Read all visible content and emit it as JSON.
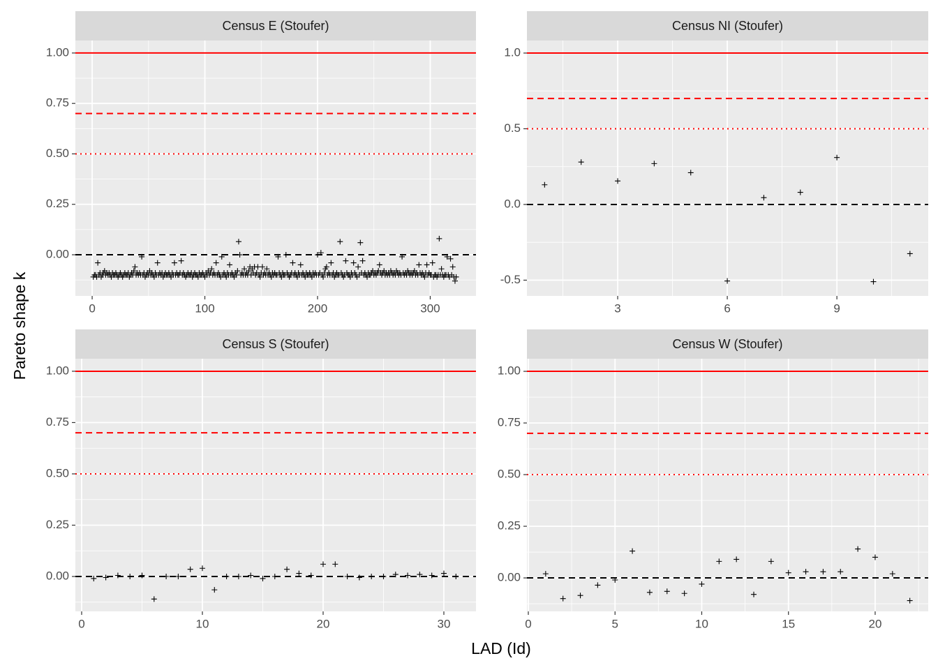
{
  "xlabel": "LAD (Id)",
  "ylabel": "Pareto shape k",
  "chart_data": [
    {
      "type": "scatter",
      "title": "Census E (Stoufer)",
      "grid": true,
      "marker_color": "#000000",
      "xlim": [
        -14.9,
        340.6
      ],
      "ylim": [
        -0.204,
        1.062
      ],
      "xticks": [
        0,
        100,
        200,
        300
      ],
      "yticks": [
        {
          "value": 0,
          "label": "0.00"
        },
        0.25,
        {
          "value": 0.5,
          "label": "0.50"
        },
        0.75,
        {
          "value": 1,
          "label": "1.00"
        }
      ],
      "hlines": [
        {
          "value": 1,
          "color": "#ff0000",
          "linetype": "solid"
        },
        {
          "value": 0.7,
          "color": "#ff0000",
          "linetype": "dashed"
        },
        {
          "value": 0.5,
          "color": "#ff0000",
          "linetype": "dotted"
        },
        {
          "value": 0,
          "color": "#000000",
          "linetype": "dashed"
        }
      ],
      "x": [
        1,
        2,
        3,
        4,
        5,
        6,
        7,
        8,
        9,
        10,
        11,
        12,
        13,
        14,
        15,
        16,
        17,
        18,
        19,
        20,
        21,
        22,
        23,
        24,
        25,
        26,
        27,
        28,
        29,
        30,
        31,
        32,
        33,
        34,
        35,
        36,
        37,
        38,
        39,
        40,
        41,
        42,
        43,
        44,
        45,
        46,
        47,
        48,
        49,
        50,
        51,
        52,
        53,
        54,
        55,
        56,
        57,
        58,
        59,
        60,
        61,
        62,
        63,
        64,
        65,
        66,
        67,
        68,
        69,
        70,
        71,
        72,
        73,
        74,
        75,
        76,
        77,
        78,
        79,
        80,
        81,
        82,
        83,
        84,
        85,
        86,
        87,
        88,
        89,
        90,
        91,
        92,
        93,
        94,
        95,
        96,
        97,
        98,
        99,
        100,
        101,
        102,
        103,
        104,
        105,
        106,
        107,
        108,
        109,
        110,
        111,
        112,
        113,
        114,
        115,
        116,
        117,
        118,
        119,
        120,
        121,
        122,
        123,
        124,
        125,
        126,
        127,
        128,
        129,
        130,
        131,
        132,
        133,
        134,
        135,
        136,
        137,
        138,
        139,
        140,
        141,
        142,
        143,
        144,
        145,
        146,
        147,
        148,
        149,
        150,
        151,
        152,
        153,
        154,
        155,
        156,
        157,
        158,
        159,
        160,
        161,
        162,
        163,
        164,
        165,
        166,
        167,
        168,
        169,
        170,
        171,
        172,
        173,
        174,
        175,
        176,
        177,
        178,
        179,
        180,
        181,
        182,
        183,
        184,
        185,
        186,
        187,
        188,
        189,
        190,
        191,
        192,
        193,
        194,
        195,
        196,
        197,
        198,
        199,
        200,
        201,
        202,
        203,
        204,
        205,
        206,
        207,
        208,
        209,
        210,
        211,
        212,
        213,
        214,
        215,
        216,
        217,
        218,
        219,
        220,
        221,
        222,
        223,
        224,
        225,
        226,
        227,
        228,
        229,
        230,
        231,
        232,
        233,
        234,
        235,
        236,
        237,
        238,
        239,
        240,
        241,
        242,
        243,
        244,
        245,
        246,
        247,
        248,
        249,
        250,
        251,
        252,
        253,
        254,
        255,
        256,
        257,
        258,
        259,
        260,
        261,
        262,
        263,
        264,
        265,
        266,
        267,
        268,
        269,
        270,
        271,
        272,
        273,
        274,
        275,
        276,
        277,
        278,
        279,
        280,
        281,
        282,
        283,
        284,
        285,
        286,
        287,
        288,
        289,
        290,
        291,
        292,
        293,
        294,
        295,
        296,
        297,
        298,
        299,
        300,
        301,
        302,
        303,
        304,
        305,
        306,
        307,
        308,
        309,
        310,
        311,
        312,
        313,
        314,
        315,
        316,
        317,
        318,
        319,
        320,
        321,
        322,
        323
      ],
      "values": [
        -0.11,
        -0.1,
        -0.1,
        -0.11,
        -0.04,
        -0.1,
        -0.09,
        -0.11,
        -0.1,
        -0.09,
        -0.08,
        -0.1,
        -0.09,
        -0.1,
        -0.09,
        -0.1,
        -0.11,
        -0.09,
        -0.1,
        -0.1,
        -0.09,
        -0.1,
        -0.11,
        -0.1,
        -0.09,
        -0.1,
        -0.11,
        -0.1,
        -0.09,
        -0.1,
        -0.1,
        -0.09,
        -0.11,
        -0.1,
        -0.09,
        -0.1,
        -0.08,
        -0.06,
        -0.1,
        -0.09,
        -0.1,
        -0.09,
        -0.1,
        -0.01,
        -0.1,
        -0.09,
        -0.11,
        -0.1,
        -0.09,
        -0.1,
        -0.08,
        -0.1,
        -0.09,
        -0.1,
        -0.11,
        -0.09,
        -0.1,
        -0.04,
        -0.1,
        -0.09,
        -0.1,
        -0.09,
        -0.11,
        -0.1,
        -0.09,
        -0.1,
        -0.1,
        -0.09,
        -0.1,
        -0.11,
        -0.09,
        -0.1,
        -0.04,
        -0.1,
        -0.09,
        -0.1,
        -0.1,
        -0.09,
        -0.03,
        -0.1,
        -0.09,
        -0.1,
        -0.11,
        -0.1,
        -0.09,
        -0.1,
        -0.1,
        -0.09,
        -0.11,
        -0.1,
        -0.09,
        -0.1,
        -0.1,
        -0.11,
        -0.09,
        -0.1,
        -0.1,
        -0.09,
        -0.1,
        -0.11,
        -0.09,
        -0.1,
        -0.08,
        -0.1,
        -0.09,
        -0.07,
        -0.1,
        -0.09,
        -0.1,
        -0.04,
        -0.1,
        -0.09,
        -0.1,
        -0.11,
        -0.01,
        -0.1,
        -0.09,
        -0.1,
        -0.11,
        -0.09,
        -0.1,
        -0.05,
        -0.1,
        -0.09,
        -0.1,
        -0.11,
        -0.09,
        -0.1,
        -0.08,
        0.065,
        0.0,
        -0.1,
        -0.09,
        -0.1,
        -0.07,
        -0.1,
        -0.09,
        -0.1,
        -0.08,
        -0.06,
        -0.1,
        -0.07,
        -0.09,
        -0.06,
        -0.1,
        -0.09,
        -0.06,
        -0.1,
        -0.11,
        -0.09,
        -0.06,
        -0.1,
        -0.09,
        -0.1,
        -0.07,
        -0.1,
        -0.09,
        -0.1,
        -0.11,
        -0.09,
        -0.1,
        -0.09,
        -0.1,
        -0.1,
        -0.01,
        -0.09,
        -0.1,
        -0.11,
        -0.09,
        -0.1,
        -0.1,
        0.0,
        -0.09,
        -0.1,
        -0.11,
        -0.1,
        -0.09,
        -0.04,
        -0.1,
        -0.09,
        -0.1,
        -0.11,
        -0.09,
        -0.1,
        -0.05,
        -0.1,
        -0.09,
        -0.1,
        -0.11,
        -0.09,
        -0.1,
        -0.1,
        -0.09,
        -0.1,
        -0.11,
        -0.09,
        -0.1,
        -0.09,
        -0.1,
        0.0,
        -0.1,
        -0.09,
        0.01,
        -0.1,
        -0.11,
        -0.09,
        -0.07,
        -0.06,
        -0.1,
        -0.09,
        -0.1,
        -0.04,
        -0.1,
        -0.09,
        -0.11,
        -0.1,
        -0.09,
        -0.1,
        -0.1,
        0.065,
        -0.09,
        -0.1,
        -0.11,
        -0.1,
        -0.03,
        -0.09,
        -0.1,
        -0.1,
        -0.11,
        -0.09,
        -0.1,
        -0.04,
        -0.09,
        -0.1,
        -0.11,
        -0.06,
        -0.1,
        0.06,
        -0.09,
        -0.03,
        -0.1,
        -0.09,
        -0.1,
        -0.11,
        -0.09,
        -0.1,
        -0.1,
        -0.09,
        -0.08,
        -0.1,
        -0.09,
        -0.1,
        -0.09,
        -0.08,
        -0.05,
        -0.09,
        -0.1,
        -0.09,
        -0.08,
        -0.1,
        -0.09,
        -0.1,
        -0.09,
        -0.1,
        -0.08,
        -0.09,
        -0.1,
        -0.09,
        -0.1,
        -0.08,
        -0.09,
        -0.1,
        -0.09,
        -0.1,
        -0.01,
        -0.09,
        -0.1,
        -0.09,
        -0.1,
        -0.08,
        -0.09,
        -0.1,
        -0.09,
        -0.1,
        -0.09,
        -0.08,
        -0.1,
        -0.09,
        -0.1,
        -0.05,
        -0.09,
        -0.1,
        -0.09,
        -0.1,
        -0.11,
        -0.09,
        -0.05,
        -0.1,
        -0.09,
        -0.1,
        -0.1,
        -0.04,
        -0.11,
        -0.1,
        -0.1,
        -0.11,
        -0.1,
        0.08,
        -0.1,
        -0.07,
        -0.1,
        -0.11,
        -0.1,
        -0.1,
        -0.01,
        -0.1,
        -0.11,
        -0.02,
        -0.1,
        -0.06,
        -0.11,
        -0.13,
        -0.11
      ]
    },
    {
      "type": "scatter",
      "title": "Census NI (Stoufer)",
      "grid": true,
      "marker_color": "#000000",
      "xlim": [
        0.516,
        11.5
      ],
      "ylim": [
        -0.604,
        1.083
      ],
      "xticks": [
        3,
        6,
        9
      ],
      "yticks": [
        -0.5,
        {
          "value": 0,
          "label": "0.0"
        },
        0.5,
        {
          "value": 1,
          "label": "1.0"
        }
      ],
      "hlines": [
        {
          "value": 1,
          "color": "#ff0000",
          "linetype": "solid"
        },
        {
          "value": 0.7,
          "color": "#ff0000",
          "linetype": "dashed"
        },
        {
          "value": 0.5,
          "color": "#ff0000",
          "linetype": "dotted"
        },
        {
          "value": 0,
          "color": "#000000",
          "linetype": "dashed"
        }
      ],
      "x": [
        1,
        2,
        3,
        4,
        5,
        6,
        7,
        8,
        9,
        10,
        11
      ],
      "values": [
        0.13,
        0.28,
        0.155,
        0.27,
        0.21,
        -0.505,
        0.045,
        0.08,
        0.31,
        -0.51,
        -0.325
      ]
    },
    {
      "type": "scatter",
      "title": "Census S (Stoufer)",
      "grid": true,
      "marker_color": "#000000",
      "xlim": [
        -0.52,
        32.66
      ],
      "ylim": [
        -0.17,
        1.061
      ],
      "xticks": [
        0,
        10,
        20,
        30
      ],
      "yticks": [
        {
          "value": 0,
          "label": "0.00"
        },
        0.25,
        {
          "value": 0.5,
          "label": "0.50"
        },
        0.75,
        {
          "value": 1,
          "label": "1.00"
        }
      ],
      "hlines": [
        {
          "value": 1,
          "color": "#ff0000",
          "linetype": "solid"
        },
        {
          "value": 0.7,
          "color": "#ff0000",
          "linetype": "dashed"
        },
        {
          "value": 0.5,
          "color": "#ff0000",
          "linetype": "dotted"
        },
        {
          "value": 0,
          "color": "#000000",
          "linetype": "dashed"
        }
      ],
      "x": [
        1,
        2,
        3,
        4,
        5,
        6,
        7,
        8,
        9,
        10,
        11,
        12,
        13,
        14,
        15,
        16,
        17,
        18,
        19,
        20,
        21,
        22,
        23,
        24,
        25,
        26,
        27,
        28,
        29,
        30,
        31
      ],
      "values": [
        -0.01,
        -0.005,
        0.005,
        0.0,
        0.005,
        -0.11,
        0.0,
        0.0,
        0.035,
        0.04,
        -0.065,
        0.0,
        0.0,
        0.005,
        -0.01,
        0.0,
        0.035,
        0.015,
        0.005,
        0.06,
        0.06,
        0.0,
        -0.005,
        0.0,
        0.0,
        0.01,
        0.005,
        0.01,
        0.005,
        0.015,
        0.0
      ]
    },
    {
      "type": "scatter",
      "title": "Census W (Stoufer)",
      "grid": true,
      "marker_color": "#000000",
      "xlim": [
        -0.08,
        23.06
      ],
      "ylim": [
        -0.162,
        1.061
      ],
      "xticks": [
        0,
        5,
        10,
        15,
        20
      ],
      "yticks": [
        {
          "value": 0,
          "label": "0.00"
        },
        0.25,
        {
          "value": 0.5,
          "label": "0.50"
        },
        0.75,
        {
          "value": 1,
          "label": "1.00"
        }
      ],
      "hlines": [
        {
          "value": 1,
          "color": "#ff0000",
          "linetype": "solid"
        },
        {
          "value": 0.7,
          "color": "#ff0000",
          "linetype": "dashed"
        },
        {
          "value": 0.5,
          "color": "#ff0000",
          "linetype": "dotted"
        },
        {
          "value": 0,
          "color": "#000000",
          "linetype": "dashed"
        }
      ],
      "x": [
        1,
        2,
        3,
        4,
        5,
        6,
        7,
        8,
        9,
        10,
        11,
        12,
        13,
        14,
        15,
        16,
        17,
        18,
        19,
        20,
        21,
        22
      ],
      "values": [
        0.02,
        -0.1,
        -0.085,
        -0.035,
        -0.01,
        0.13,
        -0.07,
        -0.065,
        -0.075,
        -0.03,
        0.08,
        0.09,
        -0.08,
        0.08,
        0.025,
        0.03,
        0.03,
        0.03,
        0.14,
        0.1,
        0.02,
        -0.11
      ]
    }
  ]
}
